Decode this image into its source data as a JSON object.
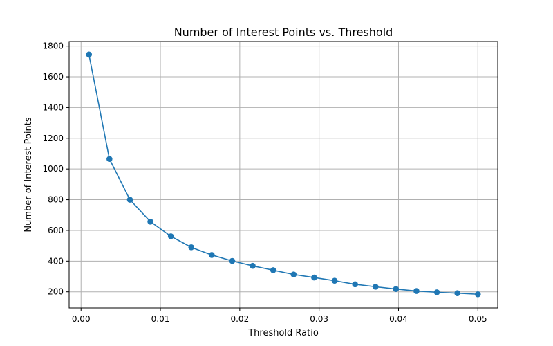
{
  "chart_data": {
    "type": "line",
    "title": "Number of Interest Points vs. Threshold",
    "xlabel": "Threshold Ratio",
    "ylabel": "Number of Interest Points",
    "xlim": [
      -0.0015,
      0.0525
    ],
    "ylim": [
      95,
      1830
    ],
    "grid": true,
    "x_ticks": [
      0.0,
      0.01,
      0.02,
      0.03,
      0.04,
      0.05
    ],
    "x_tick_labels": [
      "0.00",
      "0.01",
      "0.02",
      "0.03",
      "0.04",
      "0.05"
    ],
    "y_ticks": [
      200,
      400,
      600,
      800,
      1000,
      1200,
      1400,
      1600,
      1800
    ],
    "y_tick_labels": [
      "200",
      "400",
      "600",
      "800",
      "1000",
      "1200",
      "1400",
      "1600",
      "1800"
    ],
    "colors": {
      "series": "#1f77b4",
      "grid": "#b0b0b0",
      "axis": "#000000"
    },
    "series": [
      {
        "x": [
          0.001,
          0.00358,
          0.00616,
          0.00874,
          0.01132,
          0.01389,
          0.01647,
          0.01905,
          0.02163,
          0.02421,
          0.02679,
          0.02937,
          0.03195,
          0.03453,
          0.03711,
          0.03968,
          0.04226,
          0.04484,
          0.04742,
          0.05
        ],
        "values": [
          1745,
          1065,
          800,
          657,
          562,
          490,
          440,
          401,
          369,
          341,
          313,
          293,
          272,
          249,
          233,
          218,
          205,
          197,
          191,
          184
        ]
      }
    ]
  }
}
